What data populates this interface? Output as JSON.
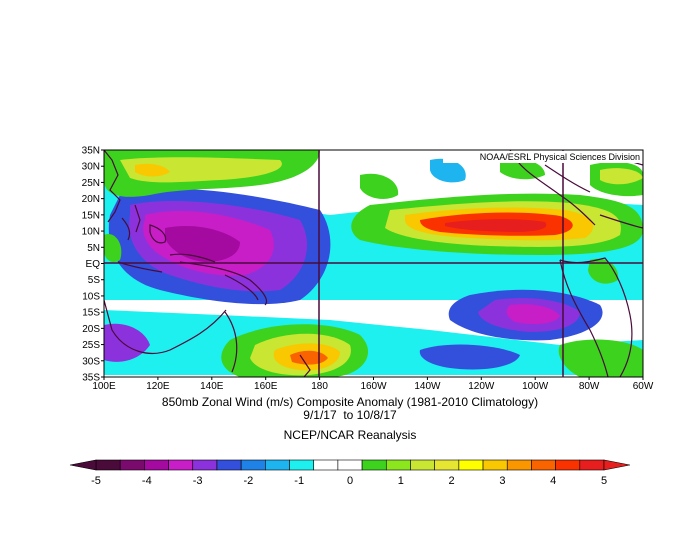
{
  "map": {
    "attribution": "NOAA/ESRL Physical Sciences Division",
    "region": {
      "lon_range": [
        "100E",
        "80W"
      ],
      "lat_range": [
        "35S",
        "35N"
      ]
    },
    "lat_labels": [
      "35N",
      "30N",
      "25N",
      "20N",
      "15N",
      "10N",
      "5N",
      "EQ",
      "5S",
      "10S",
      "15S",
      "20S",
      "25S",
      "30S",
      "35S"
    ],
    "lon_labels": [
      "100E",
      "120E",
      "140E",
      "160E",
      "180",
      "160W",
      "140W",
      "120W",
      "100W",
      "80W",
      "60W"
    ],
    "reference_lines": [
      "EQ",
      "180",
      "90W"
    ]
  },
  "captions": {
    "title": "850mb Zonal Wind (m/s) Composite Anomaly (1981-2010 Climatology)",
    "dates": "9/1/17  to 10/8/17",
    "source": "NCEP/NCAR Reanalysis"
  },
  "colorbar": {
    "labels": [
      "-5",
      "-4",
      "-3",
      "-2",
      "-1",
      "0",
      "1",
      "2",
      "3",
      "4",
      "5"
    ],
    "colors": [
      "#4a0a3a",
      "#7a0a6e",
      "#a40aa0",
      "#c81ec8",
      "#8c32dc",
      "#3250dc",
      "#1e82e6",
      "#1eb4f0",
      "#1ef0f0",
      "#ffffff",
      "#ffffff",
      "#3cd21e",
      "#8ce61e",
      "#c8e632",
      "#e6e632",
      "#ffff00",
      "#fac800",
      "#fa9600",
      "#fa6400",
      "#fa3200",
      "#e61e1e"
    ]
  },
  "chart_data": {
    "type": "heatmap",
    "variable": "850mb Zonal Wind (m/s) Composite Anomaly",
    "units": "m/s",
    "range": [
      -5,
      5
    ],
    "features": [
      {
        "name": "westerly anomaly core",
        "lon": "115W",
        "lat": "10N",
        "value": 5
      },
      {
        "name": "easterly anomaly core",
        "lon": "140E",
        "lat": "5N",
        "value": -4.5
      },
      {
        "name": "easterly anomaly",
        "lon": "105W",
        "lat": "15S",
        "value": -3
      },
      {
        "name": "westerly anomaly",
        "lon": "165E",
        "lat": "30S",
        "value": 3.5
      }
    ]
  }
}
